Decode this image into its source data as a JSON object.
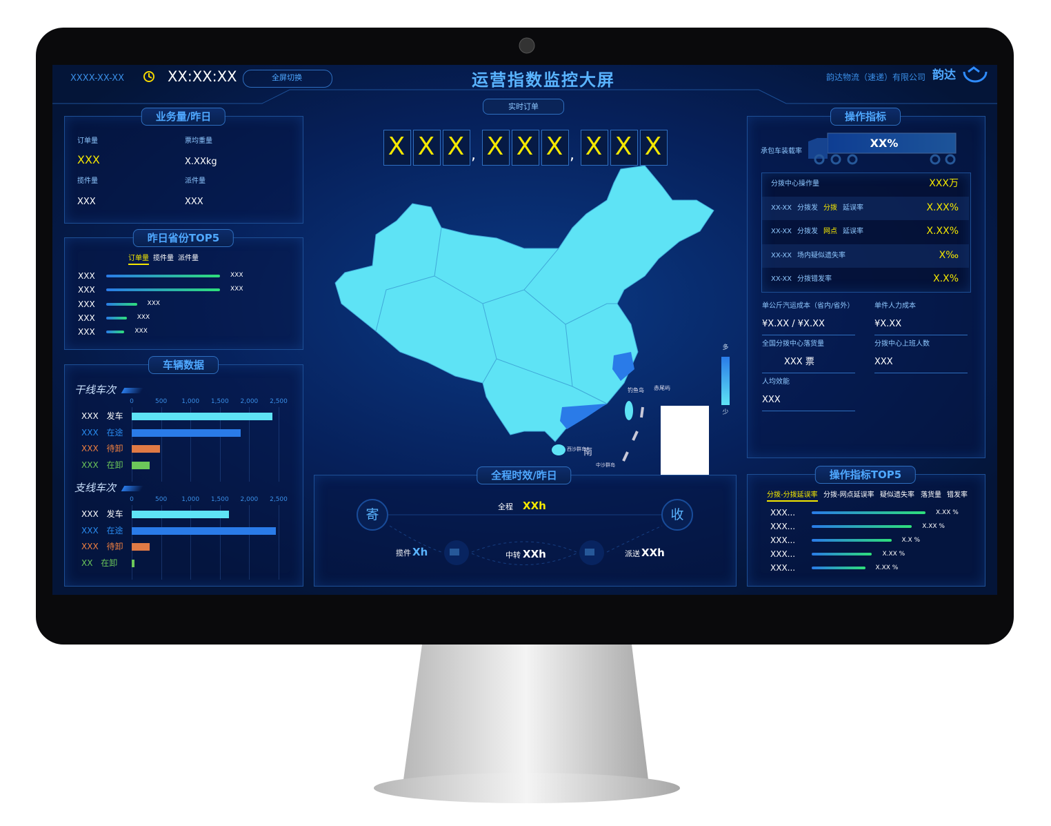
{
  "header": {
    "date": "XXXX-XX-XX",
    "time": "XX:XX:XX",
    "toggle": "全屏切换",
    "title": "运营指数监控大屏",
    "subtitle": "实时订单",
    "company": "韵达物流（速递）有限公司",
    "logo": "韵达"
  },
  "counter": [
    "X",
    "X",
    "X",
    ",",
    "X",
    "X",
    "X",
    ",",
    "X",
    "X",
    "X"
  ],
  "business": {
    "title": "业务量/昨日",
    "items": [
      {
        "label": "订单量",
        "value": "XXX"
      },
      {
        "label": "票均重量",
        "value": "X.XXkg"
      },
      {
        "label": "揽件量",
        "value": "XXX"
      },
      {
        "label": "派件量",
        "value": "XXX"
      }
    ]
  },
  "province_top5": {
    "title": "昨日省份TOP5",
    "tabs": [
      "订单量",
      "揽件量",
      "派件量"
    ],
    "rows": [
      {
        "name": "XXX",
        "value": "XXX",
        "bar": 100
      },
      {
        "name": "XXX",
        "value": "XXX",
        "bar": 100
      },
      {
        "name": "XXX",
        "value": "XXX",
        "bar": 27
      },
      {
        "name": "XXX",
        "value": "XXX",
        "bar": 18
      },
      {
        "name": "XXX",
        "value": "XXX",
        "bar": 16
      }
    ]
  },
  "vehicle": {
    "title": "车辆数据",
    "charts": [
      {
        "type": "bar",
        "title": "干线车次",
        "categories": [
          "XXX 发车",
          "XXX 在途",
          "XXX 待卸",
          "XXX 在卸"
        ],
        "values": [
          2400,
          1850,
          480,
          310
        ],
        "colors": [
          "#5ee3f5",
          "#2a7be8",
          "#e07a45",
          "#6cc85a"
        ],
        "label_colors": [
          "#ffffff",
          "#2a8cf0",
          "#f08040",
          "#6cc85a"
        ],
        "xlim": [
          0,
          2500
        ],
        "xticks": [
          0,
          500,
          {
            "value": 1000,
            "label": "1,000"
          },
          {
            "value": 1500,
            "label": "1,500"
          },
          {
            "value": 2000,
            "label": "2,000"
          },
          {
            "value": 2500,
            "label": "2,500"
          }
        ],
        "grid": true
      },
      {
        "type": "bar",
        "title": "支线车次",
        "categories": [
          "XXX 发车",
          "XXX 在途",
          "XXX 待卸",
          "XX 在卸"
        ],
        "values": [
          1650,
          2450,
          300,
          50
        ],
        "colors": [
          "#5ee3f5",
          "#2a7be8",
          "#e07a45",
          "#6cc85a"
        ],
        "label_colors": [
          "#ffffff",
          "#2a8cf0",
          "#f08040",
          "#6cc85a"
        ],
        "xlim": [
          0,
          2500
        ],
        "xticks": [
          0,
          500,
          {
            "value": 1000,
            "label": "1,000"
          },
          {
            "value": 1500,
            "label": "1,500"
          },
          {
            "value": 2000,
            "label": "2,000"
          },
          {
            "value": 2500,
            "label": "2,500"
          }
        ],
        "grid": true
      }
    ]
  },
  "ops": {
    "title": "操作指标",
    "load_label": "承包车装载率",
    "load_value": "XX%",
    "table": [
      {
        "parts": [
          "分拨中心操作量"
        ],
        "value": "XXX万"
      },
      {
        "parts": [
          "XX-XX",
          "分拨发",
          "分拨",
          "延误率"
        ],
        "value": "X.XX%"
      },
      {
        "parts": [
          "XX-XX",
          "分拨发",
          "网点",
          "延误率"
        ],
        "value": "X.XX%"
      },
      {
        "parts": [
          "XX-XX",
          "场内疑似遗失率"
        ],
        "value": "X‰"
      },
      {
        "parts": [
          "XX-XX",
          "分拨错发率"
        ],
        "value": "X.X%"
      }
    ],
    "metrics": [
      {
        "label": "单公斤汽运成本（省内/省外）",
        "value": "¥X.XX / ¥X.XX"
      },
      {
        "label": "单件人力成本",
        "value": "¥X.XX"
      },
      {
        "label": "全国分拨中心落货量",
        "value": "XXX 票"
      },
      {
        "label": "分拨中心上班人数",
        "value": "XXX"
      },
      {
        "label": "人均效能",
        "value": "XXX"
      }
    ]
  },
  "ops_top5": {
    "title": "操作指标TOP5",
    "tabs": [
      "分拨-分拨延误率",
      "分拨-网点延误率",
      "疑似遗失率",
      "落货量",
      "错发率"
    ],
    "rows": [
      {
        "name": "XXX...",
        "value": "X.XX %",
        "bar": 100
      },
      {
        "name": "XXX...",
        "value": "X.XX %",
        "bar": 88
      },
      {
        "name": "XXX...",
        "value": "X.X %",
        "bar": 70
      },
      {
        "name": "XXX...",
        "value": "X.XX %",
        "bar": 53
      },
      {
        "name": "XXX...",
        "value": "X.XX %",
        "bar": 47
      }
    ]
  },
  "timing": {
    "title": "全程时效/昨日",
    "send": "寄",
    "receive": "收",
    "total_label": "全程",
    "total": "XXh",
    "pickup_label": "揽件",
    "pickup": "Xh",
    "transfer_label": "中转",
    "transfer": "XXh",
    "deliver_label": "派送",
    "deliver": "XXh"
  },
  "map": {
    "legend_high": "多",
    "legend_low": "少",
    "labels": [
      "钓鱼岛",
      "赤尾屿",
      "西沙群岛",
      "南",
      "中沙群岛"
    ]
  }
}
